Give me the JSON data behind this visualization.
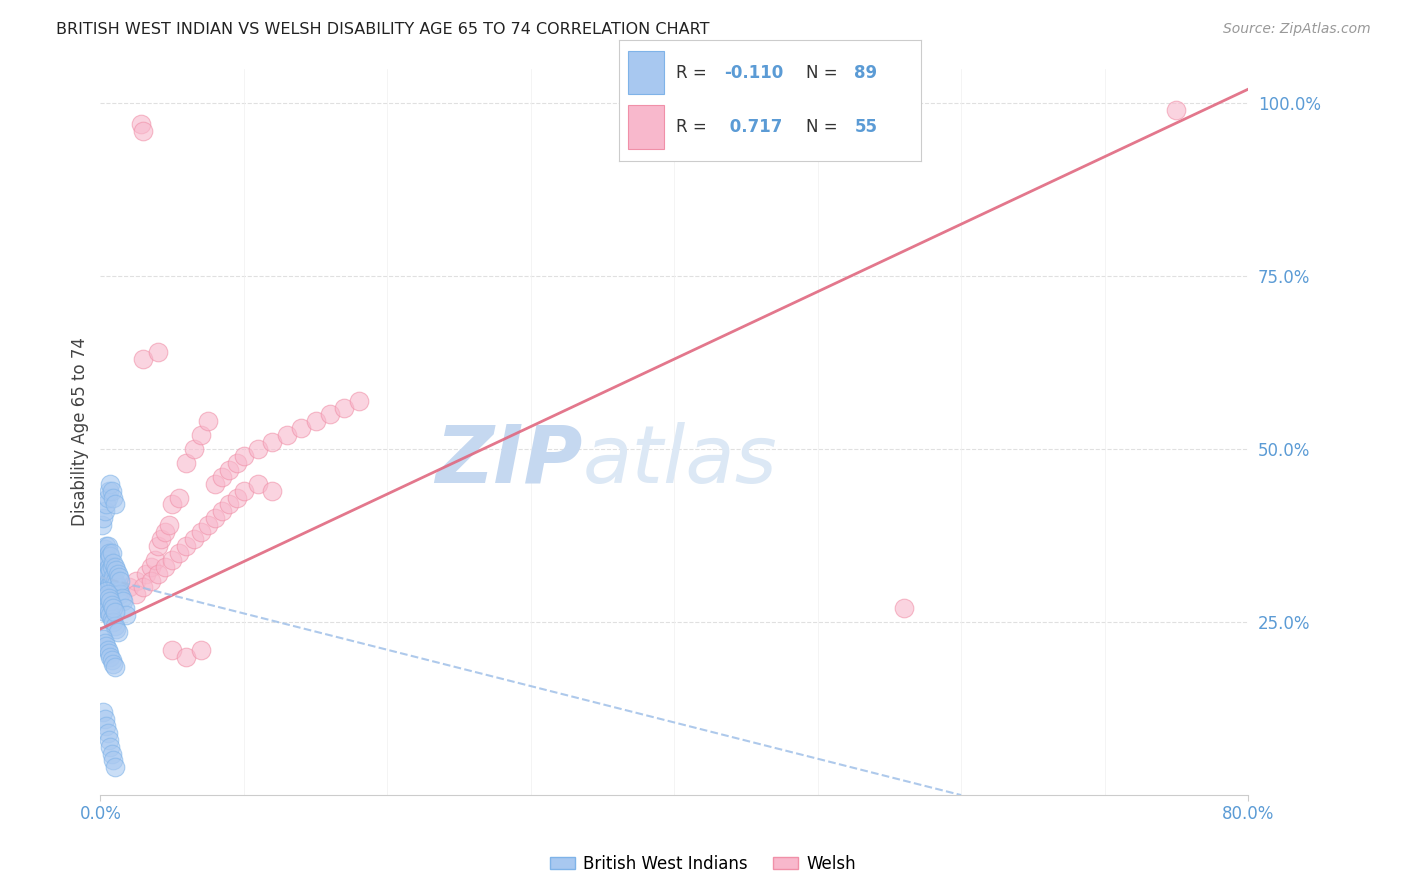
{
  "title": "BRITISH WEST INDIAN VS WELSH DISABILITY AGE 65 TO 74 CORRELATION CHART",
  "source": "Source: ZipAtlas.com",
  "tick_color": "#5b9bd5",
  "ylabel": "Disability Age 65 to 74",
  "x_min": 0.0,
  "x_max": 0.8,
  "y_min": 0.0,
  "y_max": 1.05,
  "blue_R": -0.11,
  "blue_N": 89,
  "pink_R": 0.717,
  "pink_N": 55,
  "blue_color": "#a8c8f0",
  "blue_edge_color": "#7fb3e8",
  "pink_color": "#f8b8cc",
  "pink_edge_color": "#f090a8",
  "blue_line_color": "#a0c0e8",
  "pink_line_color": "#e06880",
  "watermark_color": "#dce8f5",
  "legend_label_blue": "British West Indians",
  "legend_label_pink": "Welsh",
  "background_color": "#ffffff",
  "blue_scatter_x": [
    0.001,
    0.002,
    0.002,
    0.003,
    0.003,
    0.003,
    0.003,
    0.004,
    0.004,
    0.004,
    0.004,
    0.005,
    0.005,
    0.005,
    0.005,
    0.006,
    0.006,
    0.006,
    0.007,
    0.007,
    0.007,
    0.008,
    0.008,
    0.008,
    0.009,
    0.009,
    0.01,
    0.01,
    0.011,
    0.011,
    0.012,
    0.012,
    0.013,
    0.013,
    0.014,
    0.014,
    0.015,
    0.016,
    0.017,
    0.018,
    0.001,
    0.002,
    0.003,
    0.003,
    0.004,
    0.004,
    0.005,
    0.005,
    0.006,
    0.006,
    0.007,
    0.007,
    0.008,
    0.008,
    0.009,
    0.009,
    0.01,
    0.01,
    0.011,
    0.012,
    0.001,
    0.002,
    0.003,
    0.004,
    0.005,
    0.006,
    0.007,
    0.008,
    0.009,
    0.01,
    0.001,
    0.002,
    0.003,
    0.004,
    0.005,
    0.006,
    0.007,
    0.008,
    0.009,
    0.01,
    0.002,
    0.003,
    0.004,
    0.005,
    0.006,
    0.007,
    0.008,
    0.009,
    0.01
  ],
  "blue_scatter_y": [
    0.32,
    0.31,
    0.33,
    0.295,
    0.315,
    0.34,
    0.355,
    0.305,
    0.325,
    0.345,
    0.36,
    0.3,
    0.32,
    0.34,
    0.36,
    0.31,
    0.33,
    0.35,
    0.305,
    0.325,
    0.345,
    0.31,
    0.33,
    0.35,
    0.315,
    0.335,
    0.31,
    0.33,
    0.305,
    0.325,
    0.3,
    0.32,
    0.295,
    0.315,
    0.29,
    0.31,
    0.285,
    0.28,
    0.27,
    0.26,
    0.28,
    0.27,
    0.265,
    0.285,
    0.275,
    0.295,
    0.27,
    0.29,
    0.265,
    0.285,
    0.26,
    0.28,
    0.255,
    0.275,
    0.25,
    0.27,
    0.245,
    0.265,
    0.24,
    0.235,
    0.23,
    0.225,
    0.22,
    0.215,
    0.21,
    0.205,
    0.2,
    0.195,
    0.19,
    0.185,
    0.39,
    0.4,
    0.41,
    0.42,
    0.43,
    0.44,
    0.45,
    0.44,
    0.43,
    0.42,
    0.12,
    0.11,
    0.1,
    0.09,
    0.08,
    0.07,
    0.06,
    0.05,
    0.04
  ],
  "pink_scatter_x": [
    0.02,
    0.025,
    0.028,
    0.03,
    0.032,
    0.035,
    0.038,
    0.04,
    0.042,
    0.045,
    0.048,
    0.05,
    0.055,
    0.06,
    0.065,
    0.07,
    0.075,
    0.08,
    0.085,
    0.09,
    0.095,
    0.1,
    0.11,
    0.12,
    0.13,
    0.14,
    0.15,
    0.16,
    0.17,
    0.18,
    0.025,
    0.03,
    0.035,
    0.04,
    0.045,
    0.05,
    0.055,
    0.06,
    0.065,
    0.07,
    0.075,
    0.08,
    0.085,
    0.09,
    0.095,
    0.1,
    0.11,
    0.12,
    0.03,
    0.04,
    0.05,
    0.06,
    0.07,
    0.75,
    0.56
  ],
  "pink_scatter_y": [
    0.3,
    0.31,
    0.97,
    0.96,
    0.32,
    0.33,
    0.34,
    0.36,
    0.37,
    0.38,
    0.39,
    0.42,
    0.43,
    0.48,
    0.5,
    0.52,
    0.54,
    0.45,
    0.46,
    0.47,
    0.48,
    0.49,
    0.5,
    0.51,
    0.52,
    0.53,
    0.54,
    0.55,
    0.56,
    0.57,
    0.29,
    0.3,
    0.31,
    0.32,
    0.33,
    0.34,
    0.35,
    0.36,
    0.37,
    0.38,
    0.39,
    0.4,
    0.41,
    0.42,
    0.43,
    0.44,
    0.45,
    0.44,
    0.63,
    0.64,
    0.21,
    0.2,
    0.21,
    0.99,
    0.27
  ],
  "pink_line_x0": 0.0,
  "pink_line_x1": 0.8,
  "pink_line_y0": 0.24,
  "pink_line_y1": 1.02,
  "blue_line_x0": 0.0,
  "blue_line_x1": 0.6,
  "blue_line_y0": 0.315,
  "blue_line_y1": 0.0
}
